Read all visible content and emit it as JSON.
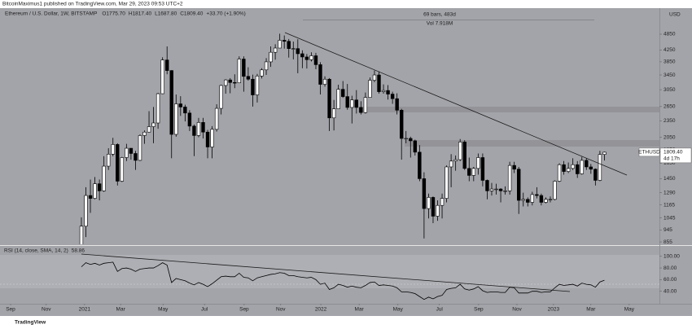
{
  "chart_data": {
    "type": "candlestick",
    "published": "BitcoinMaximus1 published on TradingView.com, Mar 29, 2023 09:53 UTC+2",
    "title": "Ethereum / U.S. Dollar, 1W, BITSTAMP",
    "header_labels": [
      "O1775.70",
      "H1817.40",
      "L1687.80",
      "C1809.40",
      "+33.70 (+1.90%)"
    ],
    "measure_labels": [
      "69 bars, 483d",
      "Vol 7.918M"
    ],
    "currency": "USD",
    "symbol_label": "ETHUSD",
    "last_price_label": "1809.40",
    "countdown": "4d 17h",
    "footer": "TradingView",
    "log_scale": true,
    "up_color": "#ffffff",
    "down_color": "#000000",
    "open": [
      730,
      975,
      1260,
      1230,
      1390,
      1310,
      1610,
      1780,
      1930,
      1420,
      1730,
      1870,
      1790,
      1690,
      2080,
      2140,
      2240,
      2310,
      2950,
      3910,
      3580,
      2100,
      2710,
      2640,
      2510,
      2250,
      2080,
      2320,
      2140,
      1890,
      2190,
      2610,
      3160,
      3310,
      3240,
      3230,
      3940,
      3410,
      3330,
      2920,
      3420,
      3600,
      3850,
      4170,
      4320,
      4610,
      4570,
      4300,
      4300,
      4120,
      4010,
      3920,
      4050,
      3760,
      3190,
      3330,
      2410,
      2600,
      3060,
      2880,
      2630,
      2800,
      2630,
      2520,
      2860,
      3300,
      3450,
      3000,
      3030,
      2940,
      2830,
      2570,
      2030,
      2030,
      1990,
      1810,
      1450,
      1130,
      1240,
      1060,
      1160,
      1230,
      1600,
      1680,
      1700,
      1970,
      1580,
      1490,
      1580,
      1730,
      1430,
      1310,
      1330,
      1330,
      1310,
      1310,
      1620,
      1570,
      1210,
      1220,
      1190,
      1270,
      1260,
      1190,
      1220,
      1220,
      1420,
      1630,
      1540,
      1580,
      1630,
      1510,
      1690,
      1600,
      1570,
      1430,
      1775.7
    ],
    "high": [
      1050,
      1350,
      1440,
      1470,
      1440,
      1750,
      1870,
      2040,
      1950,
      1740,
      1940,
      1870,
      1830,
      2100,
      2170,
      2550,
      2640,
      2970,
      4000,
      4380,
      3590,
      2930,
      2890,
      2690,
      2570,
      2280,
      2410,
      2410,
      2180,
      2250,
      2700,
      3180,
      3330,
      3360,
      3470,
      4030,
      4030,
      3680,
      3460,
      3480,
      3650,
      3970,
      4380,
      4460,
      4870,
      4800,
      4660,
      4560,
      4650,
      4240,
      4110,
      4170,
      4150,
      3840,
      3410,
      3360,
      2800,
      3180,
      3280,
      3200,
      2900,
      3040,
      2770,
      2980,
      3380,
      3580,
      3550,
      3190,
      3170,
      3000,
      2960,
      2600,
      2160,
      2060,
      2010,
      1920,
      1530,
      1280,
      1250,
      1210,
      1280,
      1620,
      1780,
      1760,
      2020,
      2000,
      1730,
      1600,
      1790,
      1790,
      1440,
      1400,
      1390,
      1340,
      1360,
      1670,
      1670,
      1600,
      1290,
      1240,
      1300,
      1350,
      1280,
      1240,
      1250,
      1430,
      1650,
      1680,
      1660,
      1720,
      1680,
      1740,
      1720,
      1640,
      1580,
      1830,
      1817.4
    ],
    "low": [
      715,
      890,
      1090,
      1220,
      1210,
      1300,
      1560,
      1750,
      1370,
      1410,
      1680,
      1700,
      1560,
      1680,
      1940,
      2140,
      1950,
      2200,
      2940,
      3470,
      1720,
      2060,
      2450,
      2340,
      2160,
      1750,
      2050,
      2030,
      1720,
      1720,
      2150,
      2480,
      2950,
      2960,
      3090,
      3230,
      3000,
      3290,
      2650,
      2740,
      3350,
      3450,
      3690,
      3920,
      4320,
      4300,
      3990,
      3930,
      3500,
      3650,
      3640,
      3860,
      3620,
      2930,
      3130,
      2160,
      2170,
      2600,
      2850,
      2580,
      2300,
      2500,
      2480,
      2500,
      2860,
      3250,
      2950,
      2950,
      2810,
      2710,
      2480,
      1700,
      1950,
      1730,
      1760,
      1420,
      880,
      1040,
      1000,
      1020,
      1040,
      1190,
      1350,
      1550,
      1680,
      1560,
      1420,
      1420,
      1500,
      1360,
      1220,
      1260,
      1270,
      1190,
      1270,
      1270,
      1520,
      1080,
      1150,
      1150,
      1160,
      1230,
      1160,
      1180,
      1190,
      1210,
      1410,
      1500,
      1520,
      1560,
      1460,
      1500,
      1560,
      1510,
      1370,
      1420,
      1687.8
    ],
    "close": [
      975,
      1260,
      1230,
      1390,
      1310,
      1610,
      1780,
      1930,
      1420,
      1730,
      1870,
      1790,
      1690,
      2080,
      2140,
      2240,
      2310,
      2950,
      3910,
      3580,
      2100,
      2710,
      2640,
      2510,
      2250,
      2080,
      2320,
      2140,
      1890,
      2190,
      2610,
      3160,
      3310,
      3240,
      3230,
      3940,
      3410,
      3330,
      2920,
      3420,
      3600,
      3850,
      4170,
      4320,
      4610,
      4570,
      4300,
      4300,
      4120,
      4010,
      3920,
      4050,
      3760,
      3190,
      3330,
      2410,
      2600,
      3060,
      2880,
      2630,
      2800,
      2630,
      2520,
      2860,
      3300,
      3450,
      3000,
      3030,
      2940,
      2830,
      2570,
      2030,
      2030,
      1990,
      1810,
      1450,
      1130,
      1240,
      1060,
      1160,
      1230,
      1600,
      1680,
      1700,
      1970,
      1580,
      1490,
      1580,
      1730,
      1430,
      1310,
      1330,
      1330,
      1310,
      1310,
      1620,
      1570,
      1210,
      1220,
      1190,
      1270,
      1260,
      1190,
      1220,
      1220,
      1420,
      1630,
      1540,
      1580,
      1630,
      1510,
      1690,
      1600,
      1570,
      1430,
      1775.7,
      1809.4
    ],
    "xlim": [
      -18.05,
      128.2
    ],
    "xticks": [
      {
        "value": -15.7,
        "label": "Sep"
      },
      {
        "value": -7.8,
        "label": "Nov"
      },
      {
        "value": 0.7,
        "label": "2021"
      },
      {
        "value": 8.7,
        "label": "Mar"
      },
      {
        "value": 18.1,
        "label": "May"
      },
      {
        "value": 27.3,
        "label": "Jul"
      },
      {
        "value": 36.1,
        "label": "Sep"
      },
      {
        "value": 44.2,
        "label": "Nov"
      },
      {
        "value": 53.1,
        "label": "2022"
      },
      {
        "value": 61.6,
        "label": "Mar"
      },
      {
        "value": 70.2,
        "label": "May"
      },
      {
        "value": 79.4,
        "label": "Jul"
      },
      {
        "value": 88.1,
        "label": "Sep"
      },
      {
        "value": 96.6,
        "label": "Nov"
      },
      {
        "value": 104.7,
        "label": "2023"
      },
      {
        "value": 113.0,
        "label": "Mar"
      },
      {
        "value": 121.5,
        "label": "May"
      }
    ],
    "ylim": [
      838,
      6030
    ],
    "yticks": [
      4850,
      4250,
      3850,
      3450,
      3050,
      2650,
      2350,
      2050,
      1850,
      1650,
      1450,
      1290,
      1165,
      1045,
      945,
      855
    ],
    "indicator": {
      "name": "RSI (14, close, SMA, 14, 2)",
      "value_label": "58.86",
      "color": "#000000",
      "values": [
        82,
        89,
        86,
        88,
        85,
        88,
        89,
        90,
        74,
        79,
        80,
        78,
        74,
        78,
        79,
        80,
        80,
        84,
        89,
        85,
        55,
        62,
        60,
        58,
        54,
        51,
        55,
        52,
        48,
        53,
        59,
        65,
        66,
        65,
        65,
        71,
        64,
        63,
        58,
        63,
        65,
        67,
        69,
        70,
        72,
        71,
        67,
        67,
        65,
        64,
        63,
        64,
        60,
        52,
        54,
        43,
        46,
        52,
        50,
        47,
        49,
        47,
        46,
        50,
        55,
        56,
        50,
        51,
        50,
        49,
        46,
        39,
        39,
        38,
        36,
        31,
        26,
        30,
        27,
        31,
        33,
        43,
        45,
        46,
        52,
        44,
        42,
        44,
        48,
        41,
        38,
        39,
        39,
        38,
        38,
        47,
        46,
        37,
        37,
        37,
        40,
        40,
        38,
        39,
        39,
        46,
        52,
        50,
        51,
        52,
        49,
        54,
        52,
        51,
        47,
        56,
        58.86
      ],
      "ylim": [
        20,
        115
      ],
      "yticks": [
        {
          "value": 100,
          "label": "100.00"
        },
        {
          "value": 80,
          "label": "80.00"
        },
        {
          "value": 60,
          "label": "60.00"
        },
        {
          "value": 40,
          "label": "40.00"
        }
      ]
    }
  }
}
